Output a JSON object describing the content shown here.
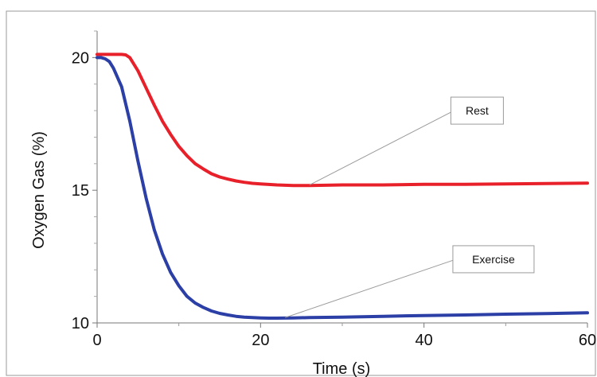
{
  "chart_data": {
    "type": "line",
    "xlabel": "Time (s)",
    "ylabel": "Oxygen Gas (%)",
    "xlim": [
      0,
      60
    ],
    "ylim": [
      10,
      21
    ],
    "x_ticks": [
      0,
      20,
      40,
      60
    ],
    "y_ticks": [
      10,
      15,
      20
    ],
    "x_tick_labels": [
      "0",
      "20",
      "40",
      "60"
    ],
    "y_tick_labels": [
      "10",
      "15",
      "20"
    ],
    "grid": false,
    "series": [
      {
        "name": "Rest",
        "color": "#e8202a",
        "x": [
          0,
          1,
          2,
          3,
          3.5,
          4,
          5,
          6,
          7,
          8,
          9,
          10,
          11,
          12,
          13,
          14,
          15,
          16,
          17,
          18,
          19,
          20,
          22,
          24,
          26,
          30,
          35,
          40,
          45,
          50,
          55,
          60
        ],
        "y": [
          20.12,
          20.12,
          20.12,
          20.12,
          20.1,
          20.0,
          19.5,
          18.85,
          18.2,
          17.6,
          17.1,
          16.65,
          16.3,
          16.0,
          15.8,
          15.62,
          15.5,
          15.42,
          15.35,
          15.3,
          15.26,
          15.24,
          15.2,
          15.18,
          15.18,
          15.2,
          15.2,
          15.22,
          15.22,
          15.24,
          15.25,
          15.27
        ]
      },
      {
        "name": "Exercise",
        "color": "#2b3fa6",
        "x": [
          0,
          0.5,
          1,
          1.5,
          2,
          3,
          4,
          5,
          6,
          7,
          8,
          9,
          10,
          11,
          12,
          13,
          14,
          15,
          16,
          17,
          18,
          19,
          20,
          21,
          22,
          24,
          26,
          30,
          35,
          40,
          45,
          50,
          55,
          60
        ],
        "y": [
          20.0,
          20.0,
          19.95,
          19.85,
          19.6,
          18.9,
          17.6,
          16.1,
          14.7,
          13.5,
          12.6,
          11.9,
          11.4,
          11.0,
          10.75,
          10.58,
          10.45,
          10.36,
          10.3,
          10.25,
          10.22,
          10.2,
          10.19,
          10.18,
          10.18,
          10.19,
          10.2,
          10.22,
          10.25,
          10.28,
          10.3,
          10.33,
          10.35,
          10.38
        ]
      }
    ],
    "annotations": [
      {
        "text": "Rest",
        "target_x": 26,
        "target_y": 15.2,
        "box_x": 46.5,
        "box_y": 18.0
      },
      {
        "text": "Exercise",
        "target_x": 23,
        "target_y": 10.2,
        "box_x": 48.5,
        "box_y": 12.4
      }
    ]
  }
}
